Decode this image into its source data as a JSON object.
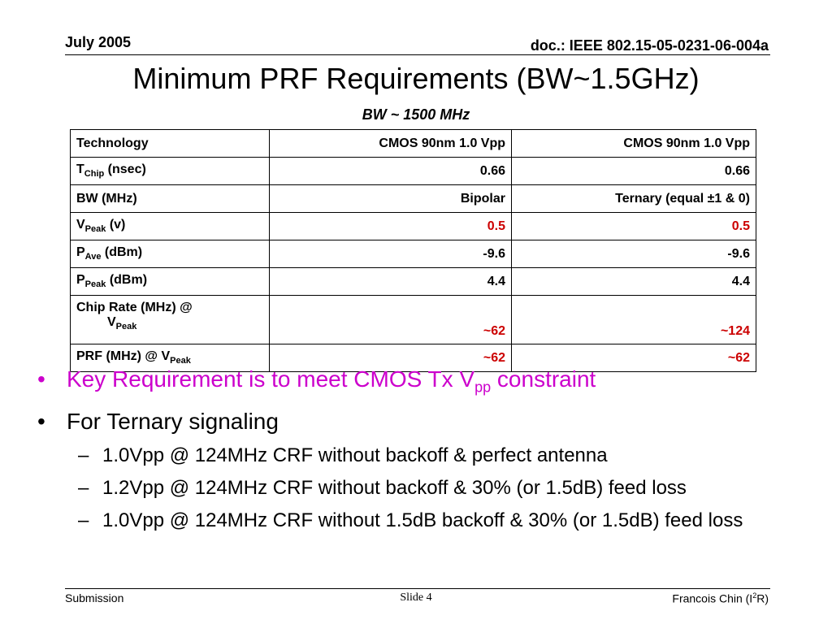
{
  "header": {
    "date": "July 2005",
    "doc_id": "doc.: IEEE 802.15-05-0231-06-004a"
  },
  "title": "Minimum PRF Requirements (BW~1.5GHz)",
  "subtitle": "BW ~ 1500 MHz",
  "table": {
    "rows": [
      {
        "label": "Technology",
        "col1": "CMOS 90nm 1.0 Vpp",
        "col2": "CMOS 90nm 1.0 Vpp"
      },
      {
        "label_main": "T",
        "label_sub": "Chip",
        "label_rest": " (nsec)",
        "col1": "0.66",
        "col2": "0.66"
      },
      {
        "label": "BW (MHz)",
        "col1": "Bipolar",
        "col2": "Ternary (equal ±1 & 0)"
      },
      {
        "label_main": "V",
        "label_sub": "Peak",
        "label_rest": " (v)",
        "col1": "0.5",
        "col2": "0.5"
      },
      {
        "label_main": "P",
        "label_sub": "Ave",
        "label_rest": " (dBm)",
        "col1": "-9.6",
        "col2": "-9.6"
      },
      {
        "label_main": "P",
        "label_sub": "Peak",
        "label_rest": " (dBm)",
        "col1": "4.4",
        "col2": "4.4"
      },
      {
        "label_line1": "Chip Rate (MHz) @",
        "label_main": "V",
        "label_sub": "Peak",
        "col1": "~62",
        "col2": "~124"
      },
      {
        "label_main": "PRF (MHz) @ V",
        "label_sub": "Peak",
        "col1": "~62",
        "col2": "~62"
      }
    ],
    "highlight_color": "#cc0000"
  },
  "bullets": [
    {
      "text_main": "Key Requirement is to meet CMOS Tx V",
      "text_sub": "pp",
      "text_rest": " constraint",
      "color": "#cc00cc"
    },
    {
      "text": "For Ternary signaling"
    }
  ],
  "sub_bullets": [
    "1.0Vpp @ 124MHz CRF without backoff & perfect antenna",
    "1.2Vpp @ 124MHz CRF without backoff & 30% (or 1.5dB) feed loss",
    "1.0Vpp @ 124MHz CRF without 1.5dB backoff & 30% (or 1.5dB) feed loss"
  ],
  "footer": {
    "left": "Submission",
    "center": "Slide 4",
    "right_main": "Francois Chin (I",
    "right_sup": "2",
    "right_rest": "R)"
  }
}
